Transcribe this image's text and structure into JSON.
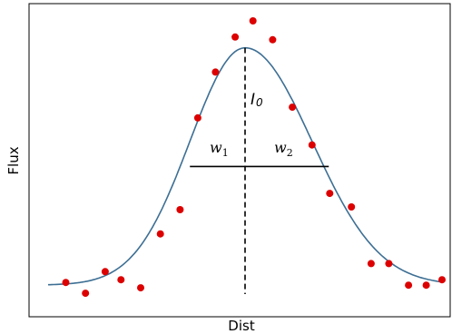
{
  "chart_data": {
    "type": "scatter",
    "title": "",
    "xlabel": "Dist",
    "ylabel": "Flux",
    "xlim": [
      -10,
      10
    ],
    "ylim": [
      0,
      1.05
    ],
    "grid": false,
    "ticks_shown": false,
    "points": {
      "color": "#dd0000",
      "x": [
        -9.1,
        -8.1,
        -7.1,
        -6.3,
        -5.3,
        -4.3,
        -3.3,
        -2.4,
        -1.5,
        -0.5,
        0.4,
        1.4,
        2.4,
        3.4,
        4.3,
        5.4,
        6.4,
        7.3,
        8.3,
        9.2,
        10.0
      ],
      "y": [
        0.07,
        0.03,
        0.11,
        0.08,
        0.05,
        0.25,
        0.34,
        0.68,
        0.85,
        0.98,
        1.04,
        0.97,
        0.72,
        0.58,
        0.4,
        0.35,
        0.14,
        0.14,
        0.06,
        0.06,
        0.08
      ]
    },
    "fit_curve": {
      "color": "#3d6f94",
      "function": "gaussian",
      "amplitude": 0.88,
      "center": 0.0,
      "sigma_left": 2.8,
      "sigma_right": 3.4,
      "baseline": 0.06
    },
    "annotations": {
      "peak_label": "I",
      "peak_label_sub": "0",
      "left_width_label": "w",
      "left_width_sub": "1",
      "right_width_label": "w",
      "right_width_sub": "2",
      "width_level": 0.5,
      "width_left_x": -2.8,
      "width_right_x": 4.25
    }
  }
}
